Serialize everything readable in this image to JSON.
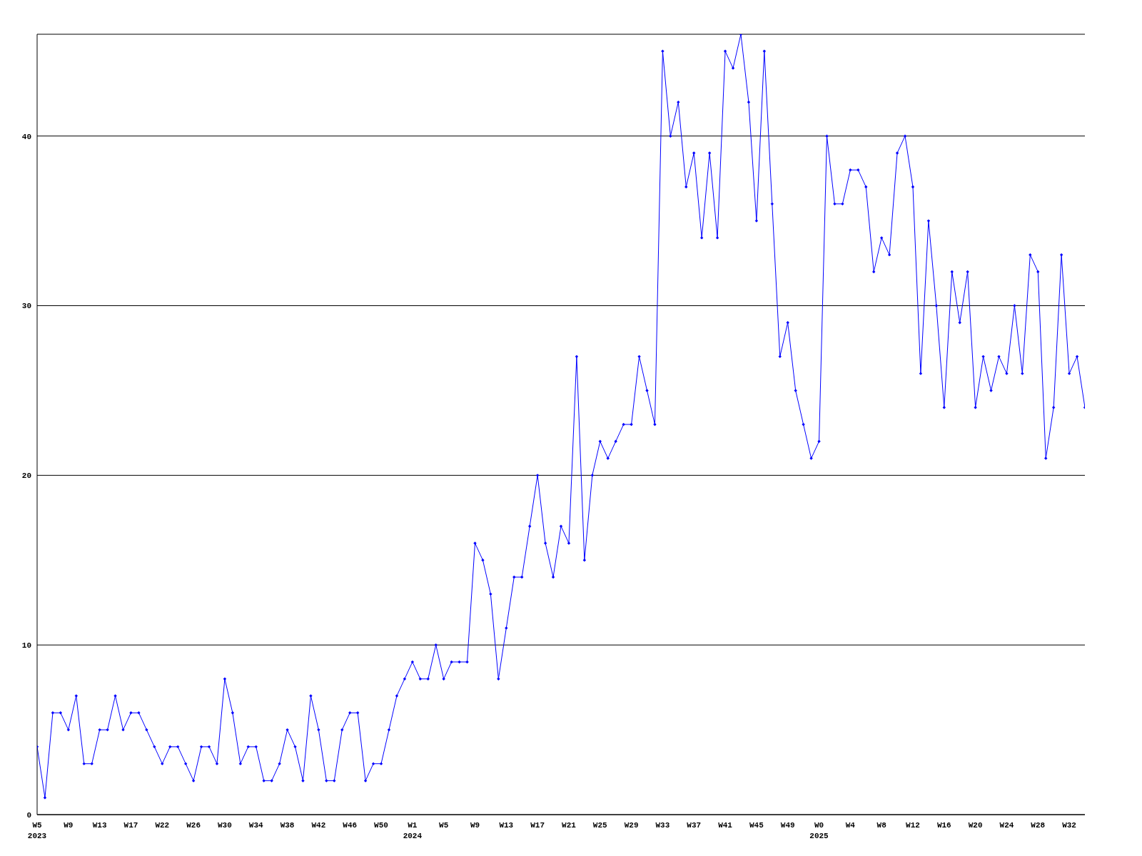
{
  "chart_data": {
    "type": "line",
    "categories": [
      "W5\n2023",
      null,
      null,
      null,
      "W9",
      null,
      null,
      null,
      "W13",
      null,
      null,
      null,
      "W17",
      null,
      null,
      null,
      "W22",
      null,
      null,
      null,
      "W26",
      null,
      null,
      null,
      "W30",
      null,
      null,
      null,
      "W34",
      null,
      null,
      null,
      "W38",
      null,
      null,
      null,
      "W42",
      null,
      null,
      null,
      "W46",
      null,
      null,
      null,
      "W50",
      null,
      null,
      null,
      "W1\n2024",
      null,
      null,
      null,
      "W5",
      null,
      null,
      null,
      "W9",
      null,
      null,
      null,
      "W13",
      null,
      null,
      null,
      "W17",
      null,
      null,
      null,
      "W21",
      null,
      null,
      null,
      "W25",
      null,
      null,
      null,
      "W29",
      null,
      null,
      null,
      "W33",
      null,
      null,
      null,
      "W37",
      null,
      null,
      null,
      "W41",
      null,
      null,
      null,
      "W45",
      null,
      null,
      null,
      "W49",
      null,
      null,
      null,
      "W0\n2025",
      null,
      null,
      null,
      "W4",
      null,
      null,
      null,
      "W8",
      null,
      null,
      null,
      "W12",
      null,
      null,
      null,
      "W16",
      null,
      null,
      null,
      "W20",
      null,
      null,
      null,
      "W24",
      null,
      null,
      null,
      "W28",
      null,
      null,
      null,
      "W32",
      null,
      null
    ],
    "series": [
      {
        "color": "#0000ff",
        "values": [
          4,
          1,
          6,
          6,
          5,
          7,
          3,
          3,
          5,
          5,
          7,
          5,
          6,
          6,
          5,
          4,
          3,
          4,
          4,
          3,
          2,
          4,
          4,
          3,
          8,
          6,
          3,
          4,
          4,
          2,
          2,
          3,
          5,
          4,
          2,
          7,
          5,
          2,
          2,
          5,
          6,
          6,
          2,
          3,
          3,
          5,
          7,
          8,
          9,
          8,
          8,
          10,
          8,
          9,
          9,
          9,
          16,
          15,
          13,
          8,
          11,
          14,
          14,
          17,
          20,
          16,
          14,
          17,
          16,
          27,
          15,
          20,
          22,
          21,
          22,
          23,
          23,
          27,
          25,
          23,
          45,
          40,
          42,
          37,
          39,
          34,
          39,
          34,
          45,
          44,
          46,
          42,
          35,
          45,
          36,
          27,
          29,
          25,
          23,
          21,
          22,
          40,
          36,
          36,
          38,
          38,
          37,
          32,
          34,
          33,
          39,
          40,
          37,
          26,
          35,
          30,
          24,
          32,
          29,
          32,
          24,
          27,
          25,
          27,
          26,
          30,
          26,
          33,
          32,
          21,
          24,
          33,
          26,
          27,
          24
        ]
      }
    ],
    "ylim": [
      0,
      46
    ],
    "yticks": [
      0,
      10,
      20,
      30,
      40
    ],
    "grid": "y",
    "marker": "diamond"
  }
}
